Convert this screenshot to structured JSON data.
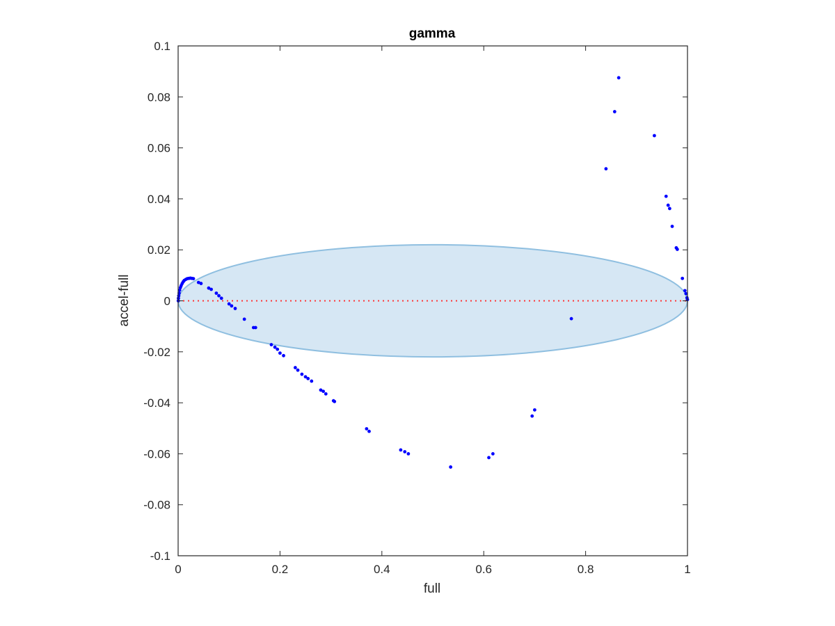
{
  "chart_data": {
    "type": "scatter",
    "title": "gamma",
    "xlabel": "full",
    "ylabel": "accel-full",
    "xlim": [
      0,
      1
    ],
    "ylim": [
      -0.1,
      0.1
    ],
    "xticks": [
      0,
      0.2,
      0.4,
      0.6,
      0.8,
      1
    ],
    "xtick_labels": [
      "0",
      "0.2",
      "0.4",
      "0.6",
      "0.8",
      "1"
    ],
    "yticks": [
      0.1,
      0.08,
      0.06,
      0.04,
      0.02,
      0,
      -0.02,
      -0.04,
      -0.06,
      -0.08,
      -0.1
    ],
    "ytick_labels": [
      "0.1",
      "0.08",
      "0.06",
      "0.04",
      "0.02",
      "0",
      "-0.02",
      "-0.04",
      "-0.06",
      "-0.08",
      "-0.1"
    ],
    "grid": false,
    "colors": {
      "points": "#0000ff",
      "zero_line": "#ff3333",
      "ellipse_fill": "#d6e7f4",
      "ellipse_edge": "#8fbfe0",
      "axes": "#262626"
    },
    "zero_line": {
      "y": 0,
      "style": "dotted"
    },
    "ellipse": {
      "cx": 0.5,
      "cy": 0,
      "rx": 0.5,
      "ry": 0.022
    },
    "series": [
      {
        "x": [
          0.0003,
          0.0006,
          0.0012,
          0.002,
          0.003,
          0.0045,
          0.006,
          0.008,
          0.01,
          0.012,
          0.015,
          0.018,
          0.021,
          0.024,
          0.027,
          0.03,
          0.04,
          0.045,
          0.06,
          0.065,
          0.075,
          0.08,
          0.085,
          0.1,
          0.105,
          0.112,
          0.13,
          0.148,
          0.152,
          0.183,
          0.19,
          0.195,
          0.2,
          0.207,
          0.23,
          0.235,
          0.243,
          0.25,
          0.255,
          0.262,
          0.28,
          0.285,
          0.29,
          0.305,
          0.307,
          0.37,
          0.375,
          0.437,
          0.445,
          0.452,
          0.535,
          0.61,
          0.618,
          0.695,
          0.7,
          0.772,
          0.84,
          0.857,
          0.865,
          0.935,
          0.958,
          0.962,
          0.965,
          0.97,
          0.978,
          0.98,
          0.99,
          0.995,
          0.997,
          0.999,
          1.0
        ],
        "y": [
          0.0,
          0.001,
          0.002,
          0.003,
          0.0042,
          0.0052,
          0.006,
          0.0068,
          0.0075,
          0.008,
          0.0084,
          0.0087,
          0.0088,
          0.0089,
          0.0088,
          0.0087,
          0.0072,
          0.0068,
          0.005,
          0.0045,
          0.003,
          0.002,
          0.001,
          -0.0012,
          -0.002,
          -0.003,
          -0.0072,
          -0.0105,
          -0.0105,
          -0.0172,
          -0.0182,
          -0.019,
          -0.0205,
          -0.0215,
          -0.0262,
          -0.0272,
          -0.0288,
          -0.0298,
          -0.0305,
          -0.0315,
          -0.035,
          -0.0355,
          -0.0365,
          -0.0392,
          -0.0395,
          -0.0502,
          -0.0512,
          -0.0585,
          -0.0592,
          -0.06,
          -0.0652,
          -0.0615,
          -0.06,
          -0.0452,
          -0.0428,
          -0.007,
          0.0518,
          0.0742,
          0.0875,
          0.0648,
          0.041,
          0.0375,
          0.0362,
          0.0292,
          0.0208,
          0.0202,
          0.0088,
          0.004,
          0.0028,
          0.0012,
          0.0005
        ]
      }
    ]
  }
}
